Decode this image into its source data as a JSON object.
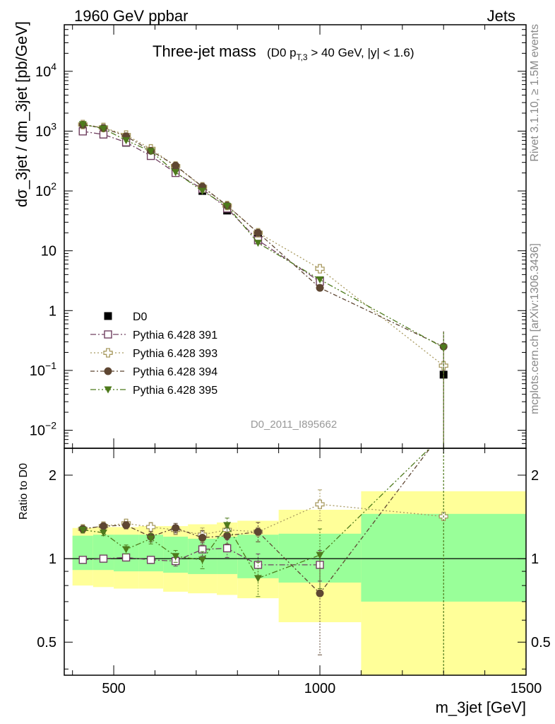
{
  "header": {
    "left": "1960 GeV ppbar",
    "right": "Jets"
  },
  "side": {
    "rivet": "Rivet 3.1.10, ≥ 1.5M events",
    "mcplots": "mcplots.cern.ch [arXiv:1306.3436]"
  },
  "main": {
    "title": "Three-jet mass",
    "title_cut_parts": [
      "(D0 p",
      "T,3",
      " > 40 GeV, |y| < 1.6)"
    ],
    "ylabel": "dσ_3jet / dm_3jet [pb/GeV]",
    "watermark": "D0_2011_I895662"
  },
  "ratio": {
    "ylabel": "Ratio to D0"
  },
  "xaxis": {
    "label": "m_3jet [GeV]"
  },
  "colors": {
    "data": "#000000",
    "p391": "#704060",
    "p393": "#a89a60",
    "p394": "#5e4632",
    "p395": "#4e7a1c",
    "band_inner": "#99ff99",
    "band_outer": "#ffff99"
  },
  "chart_data": {
    "type": "scatter",
    "xlabel": "m_3jet [GeV]",
    "ylabel": "dσ_3jet / dm_3jet [pb/GeV]",
    "xlim": [
      380,
      1500
    ],
    "xticks": [
      500,
      1000,
      1500
    ],
    "main_ylim": [
      0.005,
      60000
    ],
    "yscale": "log",
    "main_yticks": [
      {
        "value": 0.01,
        "base": "10",
        "exp": "−2",
        "plain": ""
      },
      {
        "value": 0.1,
        "base": "10",
        "exp": "−1",
        "plain": ""
      },
      {
        "value": 1,
        "base": "",
        "exp": "",
        "plain": "1"
      },
      {
        "value": 10,
        "base": "",
        "exp": "",
        "plain": "10"
      },
      {
        "value": 100,
        "base": "10",
        "exp": "2",
        "plain": ""
      },
      {
        "value": 1000,
        "base": "10",
        "exp": "3",
        "plain": ""
      },
      {
        "value": 10000,
        "base": "10",
        "exp": "4",
        "plain": ""
      }
    ],
    "ratio_ylim": [
      0.38,
      2.5
    ],
    "ratio_yticks": [
      0.5,
      1,
      2
    ],
    "ratio_ylabel": "Ratio to D0",
    "bins": [
      [
        400,
        450
      ],
      [
        450,
        500
      ],
      [
        500,
        560
      ],
      [
        560,
        620
      ],
      [
        620,
        680
      ],
      [
        680,
        750
      ],
      [
        750,
        800
      ],
      [
        800,
        900
      ],
      [
        900,
        1100
      ],
      [
        1100,
        1500
      ]
    ],
    "x": [
      425,
      475,
      530,
      590,
      650,
      715,
      775,
      850,
      1000,
      1300
    ],
    "band_inner": [
      [
        0.91,
        1.21
      ],
      [
        0.91,
        1.22
      ],
      [
        0.9,
        1.22
      ],
      [
        0.9,
        1.22
      ],
      [
        0.89,
        1.2
      ],
      [
        0.88,
        1.18
      ],
      [
        0.88,
        1.2
      ],
      [
        0.85,
        1.22
      ],
      [
        0.82,
        1.23
      ],
      [
        0.7,
        1.45
      ]
    ],
    "band_outer": [
      [
        0.8,
        1.29
      ],
      [
        0.79,
        1.3
      ],
      [
        0.78,
        1.3
      ],
      [
        0.78,
        1.31
      ],
      [
        0.76,
        1.31
      ],
      [
        0.75,
        1.33
      ],
      [
        0.74,
        1.35
      ],
      [
        0.72,
        1.37
      ],
      [
        0.59,
        1.5
      ],
      [
        0.34,
        1.75
      ]
    ],
    "series": [
      {
        "name": "D0",
        "key": "data",
        "marker": "square-filled",
        "dash": "",
        "values": [
          1000,
          880,
          640,
          390,
          205,
          100,
          47,
          16,
          3.2,
          0.085
        ],
        "err": [
          0.05,
          0.05,
          0.05,
          0.05,
          0.06,
          0.06,
          0.07,
          0.08,
          0.12,
          0.2
        ]
      },
      {
        "name": "Pythia 6.428 391",
        "key": "p391",
        "marker": "square-open",
        "dash": "8,3,2,3",
        "values": [
          990,
          880,
          650,
          385,
          200,
          108,
          51,
          15,
          3.05,
          null
        ],
        "ratio": [
          0.99,
          1.0,
          1.01,
          0.99,
          0.98,
          1.08,
          1.09,
          0.95,
          0.95,
          null
        ],
        "rerr": [
          0.02,
          0.02,
          0.03,
          0.03,
          0.04,
          0.06,
          0.08,
          0.09,
          0.12,
          0
        ]
      },
      {
        "name": "Pythia 6.428 393",
        "key": "p393",
        "marker": "cross-open",
        "dash": "2,3",
        "values": [
          1290,
          1150,
          860,
          505,
          260,
          117,
          57,
          20,
          5.0,
          0.12
        ],
        "ratio": [
          1.28,
          1.31,
          1.34,
          1.3,
          1.27,
          1.22,
          1.27,
          1.25,
          1.57,
          1.42
        ],
        "rerr": [
          0.03,
          0.03,
          0.04,
          0.05,
          0.05,
          0.07,
          0.08,
          0.1,
          0.2,
          0
        ]
      },
      {
        "name": "Pythia 6.428 394",
        "key": "p394",
        "marker": "circle-filled",
        "dash": "6,3,2,3",
        "values": [
          1280,
          1130,
          820,
          470,
          265,
          118,
          57,
          20,
          2.4,
          0.25
        ],
        "ratio": [
          1.28,
          1.31,
          1.32,
          1.2,
          1.29,
          1.19,
          1.21,
          1.25,
          0.75,
          2.9
        ],
        "rerr": [
          0.03,
          0.03,
          0.04,
          0.05,
          0.05,
          0.07,
          0.08,
          0.1,
          0.3,
          0
        ]
      },
      {
        "name": "Pythia 6.428 395",
        "key": "p395",
        "marker": "triangle-down",
        "dash": "8,3,2,3,2,3",
        "values": [
          1300,
          1100,
          700,
          460,
          205,
          100,
          56,
          13.5,
          3.3,
          0.24
        ],
        "ratio": [
          1.27,
          1.24,
          1.08,
          1.18,
          1.02,
          0.99,
          1.32,
          0.85,
          1.03,
          2.8
        ],
        "rerr": [
          0.03,
          0.03,
          0.04,
          0.05,
          0.05,
          0.07,
          0.08,
          0.12,
          0.25,
          0
        ]
      }
    ]
  }
}
